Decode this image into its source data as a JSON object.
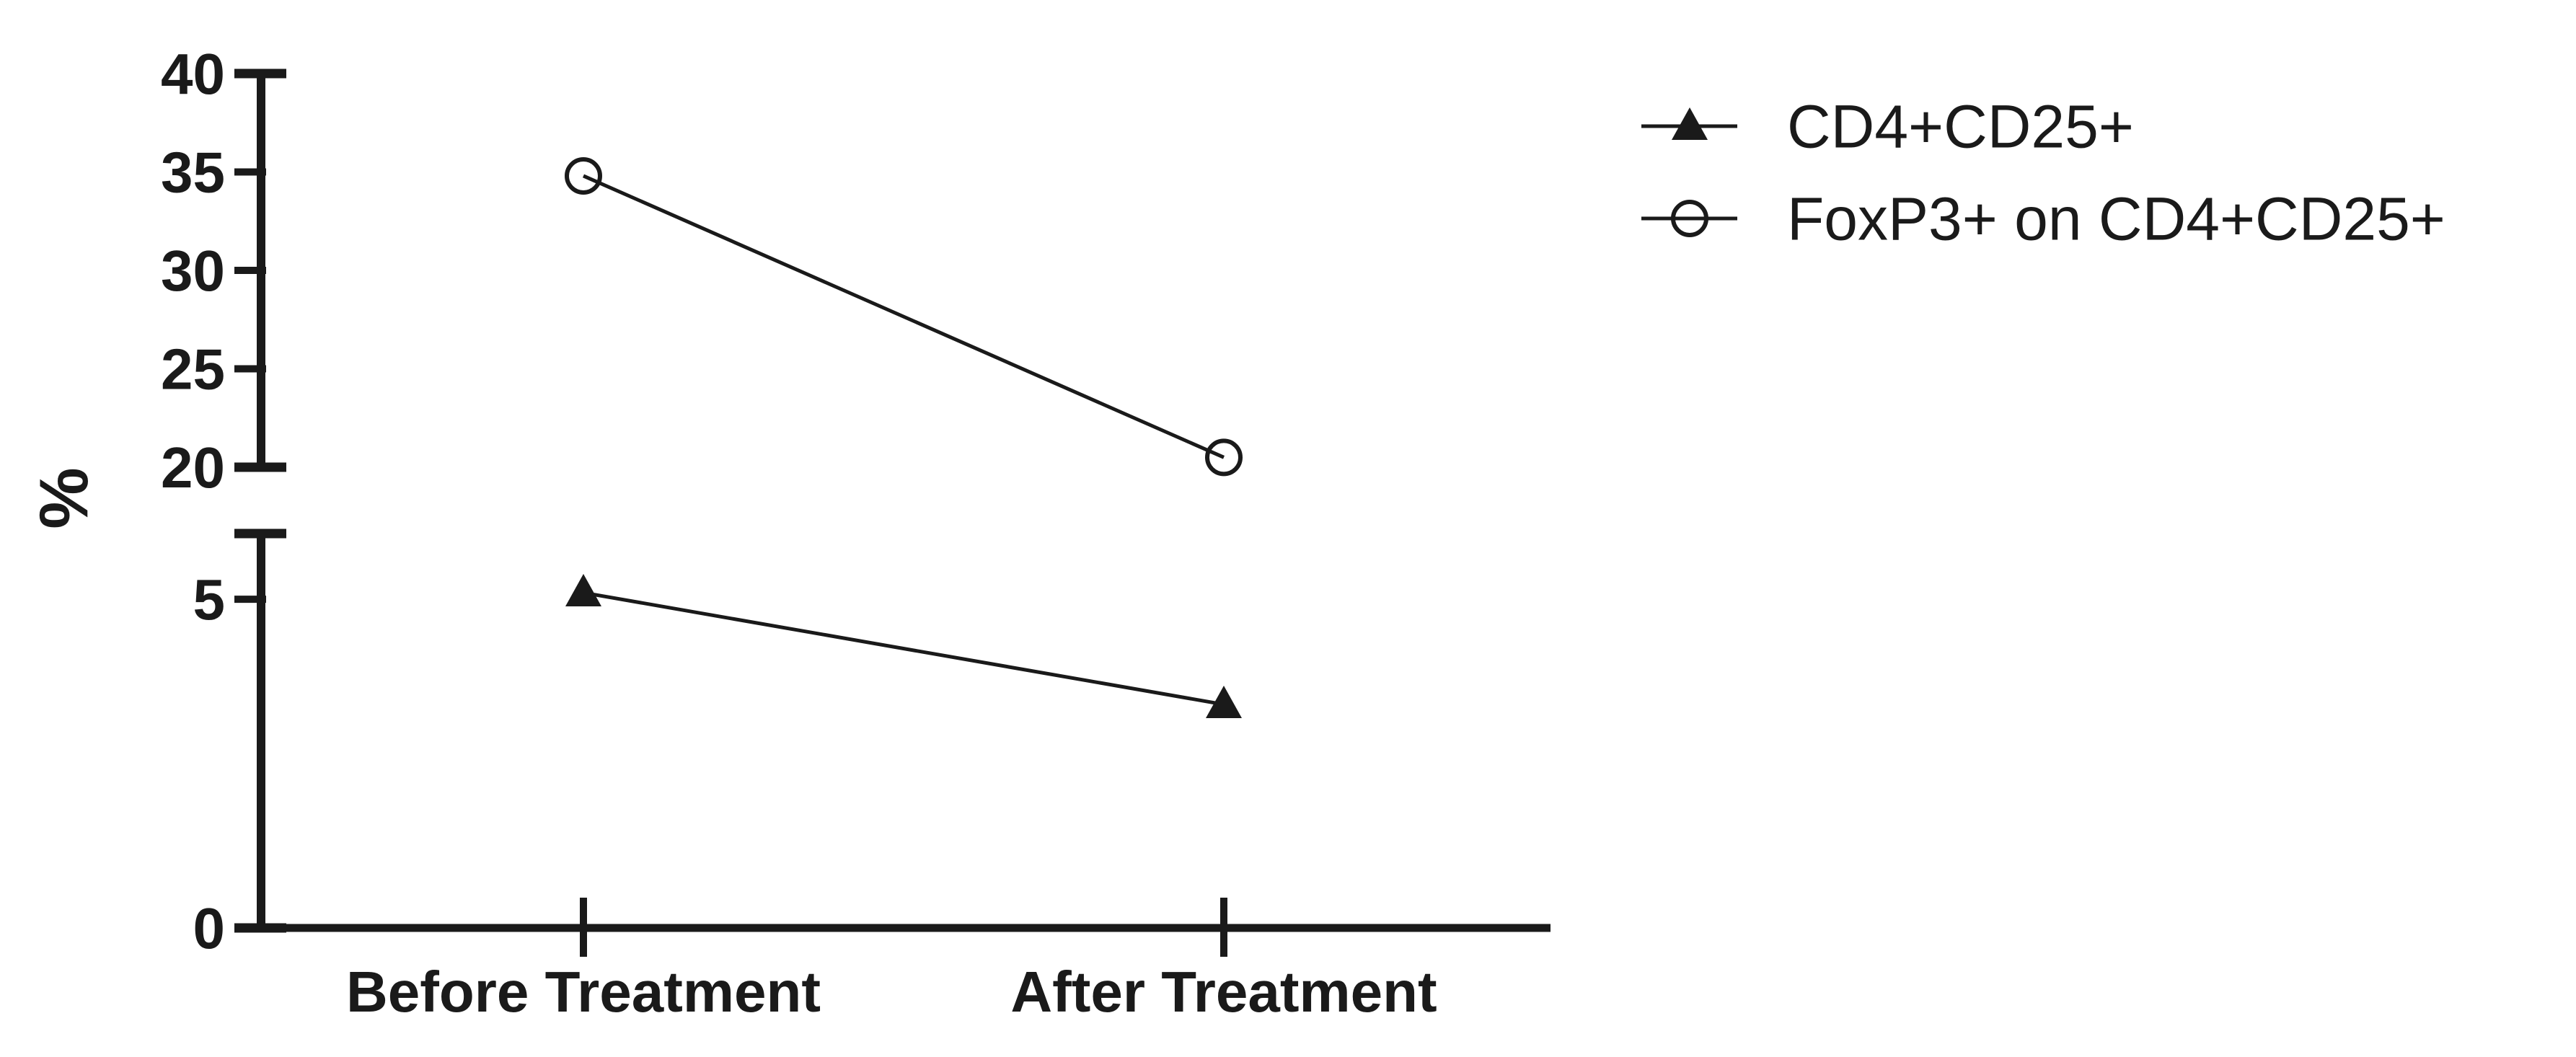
{
  "figure": {
    "background": "#ffffff",
    "ink": "#1a1a1a"
  },
  "chart_data": {
    "type": "line",
    "title": "",
    "xlabel": "",
    "ylabel": "%",
    "categories": [
      "Before Treatment",
      "After Treatment"
    ],
    "series": [
      {
        "name": "CD4+CD25+",
        "marker": "filled-triangle",
        "axis_segment": "lower",
        "values": [
          5.1,
          3.4
        ]
      },
      {
        "name": "FoxP3+ on CD4+CD25+",
        "marker": "open-circle",
        "axis_segment": "upper",
        "values": [
          34.8,
          20.5
        ]
      }
    ],
    "y_axis": {
      "unit": "%",
      "broken": true,
      "segments": [
        {
          "id": "lower",
          "range": [
            0,
            6
          ],
          "labeled_ticks": [
            0,
            5
          ]
        },
        {
          "id": "upper",
          "range": [
            20,
            40
          ],
          "labeled_ticks": [
            20,
            25,
            30,
            35,
            40
          ]
        }
      ]
    },
    "legend_position": "top-right",
    "grid": false
  }
}
